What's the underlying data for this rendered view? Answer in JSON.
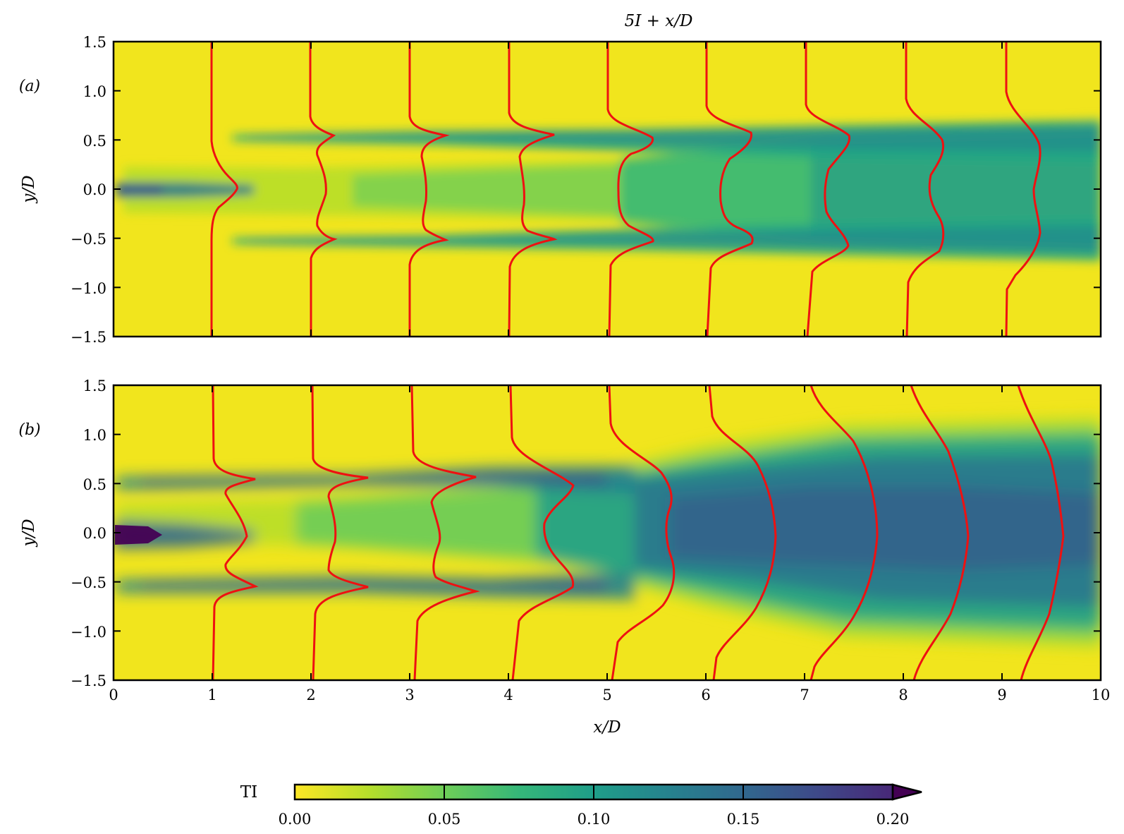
{
  "figure": {
    "top_annotation": "5I + x/D",
    "colorbar_label": "TI"
  },
  "chart_data": [
    {
      "type": "heatmap",
      "panel_label": "(a)",
      "xlabel": "",
      "ylabel": "y/D",
      "xlim": [
        0,
        10
      ],
      "ylim": [
        -1.5,
        1.5
      ],
      "x_ticks": [
        0,
        1,
        2,
        3,
        4,
        5,
        6,
        7,
        8,
        9,
        10
      ],
      "y_ticks": [
        "1.5",
        "1.0",
        "0.5",
        "0.0",
        "−0.5",
        "−1.0",
        "−1.5"
      ],
      "y_tick_values": [
        1.5,
        1.0,
        0.5,
        0.0,
        -0.5,
        -1.0,
        -1.5
      ],
      "colormap": "viridis_r",
      "color_range": [
        0.0,
        0.2
      ],
      "shear_layer_y": [
        0.5,
        -0.5
      ],
      "profile_stations_xD": [
        1,
        2,
        3,
        4,
        5,
        6,
        7,
        8,
        9
      ],
      "profile_peak_xD": [
        1.29,
        2.45,
        3.37,
        4.43,
        5.49,
        6.45,
        7.43,
        8.39,
        9.41
      ],
      "profile_far_field_xD": [
        1.0,
        2.0,
        3.0,
        4.0,
        5.0,
        6.0,
        7.0,
        8.0,
        9.0
      ]
    },
    {
      "type": "heatmap",
      "panel_label": "(b)",
      "xlabel": "x/D",
      "ylabel": "y/D",
      "xlim": [
        0,
        10
      ],
      "ylim": [
        -1.5,
        1.5
      ],
      "x_ticks": [
        "0",
        "1",
        "2",
        "3",
        "4",
        "5",
        "6",
        "7",
        "8",
        "9",
        "10"
      ],
      "x_tick_values": [
        0,
        1,
        2,
        3,
        4,
        5,
        6,
        7,
        8,
        9,
        10
      ],
      "y_ticks": [
        "1.5",
        "1.0",
        "0.5",
        "0.0",
        "−0.5",
        "−1.0",
        "−1.5"
      ],
      "y_tick_values": [
        1.5,
        1.0,
        0.5,
        0.0,
        -0.5,
        -1.0,
        -1.5
      ],
      "colormap": "viridis_r",
      "color_range": [
        0.0,
        0.2
      ],
      "shear_layer_y": [
        0.5,
        -0.5
      ],
      "profile_stations_xD": [
        1,
        2,
        3,
        4,
        5,
        6,
        7,
        8,
        9
      ],
      "profile_peak_xD": [
        1.43,
        2.57,
        3.63,
        4.63,
        5.57,
        6.67,
        7.72,
        8.65,
        9.58
      ],
      "profile_far_field_xD": [
        1.0,
        2.0,
        3.0,
        4.0,
        5.0,
        6.08,
        7.08,
        8.15,
        9.22
      ]
    }
  ],
  "colorbar": {
    "label": "TI",
    "ticks": [
      "0.00",
      "0.05",
      "0.10",
      "0.15",
      "0.20"
    ],
    "tick_values": [
      0.0,
      0.05,
      0.1,
      0.15,
      0.2
    ],
    "range": [
      0.0,
      0.2
    ],
    "extend": "max"
  },
  "colors": {
    "profile_line": "#ee1111",
    "axis": "#000000",
    "background": "#ffffff"
  }
}
